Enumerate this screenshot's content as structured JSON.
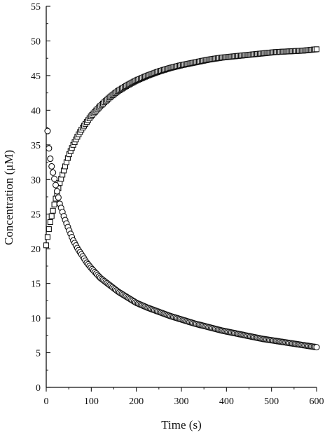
{
  "chart_data": {
    "type": "scatter",
    "xlabel": "Time (s)",
    "ylabel": "Concentration (μM)",
    "xlim": [
      0,
      600
    ],
    "ylim": [
      0,
      55
    ],
    "x_ticks": [
      0,
      100,
      200,
      300,
      400,
      500,
      600
    ],
    "y_ticks": [
      0,
      5,
      10,
      15,
      20,
      25,
      30,
      35,
      40,
      45,
      50,
      55
    ],
    "grid": false,
    "series": [
      {
        "marker": "square",
        "x": [
          0,
          5,
          10,
          15,
          20,
          25,
          30,
          40,
          50,
          60,
          70,
          80,
          90,
          100,
          120,
          140,
          160,
          180,
          200,
          225,
          250,
          275,
          300,
          330,
          360,
          390,
          420,
          450,
          480,
          510,
          540,
          570,
          600
        ],
        "values": [
          20.5,
          22.5,
          24.2,
          25.5,
          27.0,
          28.2,
          29.5,
          31.5,
          33.5,
          35.0,
          36.3,
          37.4,
          38.3,
          39.2,
          40.6,
          41.8,
          42.8,
          43.6,
          44.3,
          45.0,
          45.6,
          46.1,
          46.5,
          46.9,
          47.3,
          47.6,
          47.8,
          48.0,
          48.2,
          48.4,
          48.5,
          48.6,
          48.8
        ]
      },
      {
        "marker": "circle",
        "x": [
          3,
          6,
          10,
          15,
          20,
          25,
          30,
          35,
          40,
          50,
          60,
          70,
          80,
          90,
          100,
          120,
          140,
          160,
          180,
          200,
          225,
          250,
          275,
          300,
          330,
          360,
          390,
          420,
          450,
          480,
          510,
          540,
          570,
          600
        ],
        "values": [
          37.0,
          34.5,
          32.5,
          31.0,
          29.5,
          28.0,
          26.5,
          25.5,
          24.5,
          22.8,
          21.2,
          20.0,
          19.0,
          18.0,
          17.2,
          15.8,
          14.8,
          13.8,
          13.0,
          12.2,
          11.5,
          10.9,
          10.3,
          9.8,
          9.2,
          8.7,
          8.2,
          7.8,
          7.4,
          7.0,
          6.7,
          6.4,
          6.1,
          5.8
        ]
      }
    ]
  }
}
